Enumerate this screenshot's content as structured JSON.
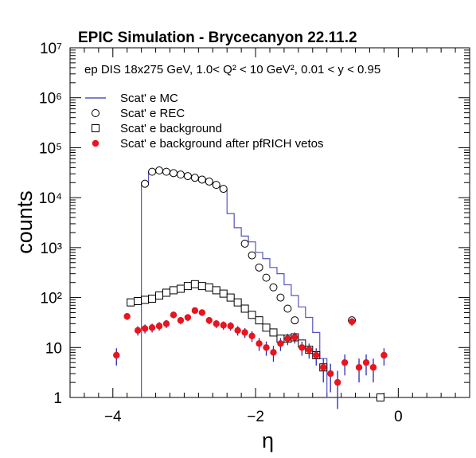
{
  "chart_data": {
    "type": "scatter",
    "title": "EPIC Simulation - Brycecanyon 22.11.2",
    "subtitle": "ep DIS 18x275 GeV, 1.0< Q² < 10 GeV², 0.01 < y < 0.95",
    "xlabel": "η",
    "ylabel": "counts",
    "xlim": [
      -4.6,
      1.0
    ],
    "ylim": [
      1,
      10000000
    ],
    "yscale": "log",
    "x_ticks": [
      "−4",
      "−2",
      "0"
    ],
    "y_ticks": [
      "1",
      "10",
      "10²",
      "10³",
      "10⁴",
      "10⁵",
      "10⁶",
      "10⁷"
    ],
    "legend_position": "top-left",
    "series": [
      {
        "name": "Scat' e MC",
        "style": "line-step",
        "color": "#5555bb",
        "x": [
          -3.6,
          -3.5,
          -3.4,
          -3.3,
          -3.2,
          -3.1,
          -3.0,
          -2.9,
          -2.8,
          -2.7,
          -2.6,
          -2.5,
          -2.4,
          -2.3,
          -2.2,
          -2.1,
          -2.0,
          -1.9,
          -1.8,
          -1.7,
          -1.6,
          -1.5,
          -1.4,
          -1.3,
          -1.2,
          -1.1,
          -1.0
        ],
        "values": [
          20000,
          33000,
          35000,
          34000,
          32000,
          30000,
          28000,
          26000,
          24000,
          21000,
          18000,
          14500,
          4800,
          2500,
          1700,
          1300,
          800,
          600,
          400,
          300,
          180,
          110,
          65,
          40,
          20,
          6,
          0
        ]
      },
      {
        "name": "Scat' e REC",
        "style": "open-circle",
        "color": "#000000",
        "x": [
          -3.55,
          -3.45,
          -3.35,
          -3.25,
          -3.15,
          -3.05,
          -2.95,
          -2.85,
          -2.75,
          -2.65,
          -2.55,
          -2.45,
          -2.15,
          -2.05,
          -1.95,
          -1.85,
          -1.75,
          -1.65,
          -1.55,
          -1.45,
          -0.65
        ],
        "values": [
          19000,
          33000,
          35000,
          33000,
          31000,
          29000,
          27000,
          25000,
          23000,
          21000,
          18000,
          15000,
          1200,
          700,
          400,
          250,
          160,
          100,
          60,
          35,
          35
        ]
      },
      {
        "name": "Scat' e background",
        "style": "open-square",
        "color": "#000000",
        "x": [
          -3.75,
          -3.65,
          -3.55,
          -3.45,
          -3.35,
          -3.25,
          -3.15,
          -3.05,
          -2.95,
          -2.85,
          -2.75,
          -2.65,
          -2.55,
          -2.45,
          -2.35,
          -2.25,
          -2.15,
          -2.05,
          -1.95,
          -1.85,
          -1.75,
          -1.65,
          -1.55,
          -1.45,
          -1.35,
          -1.25,
          -1.15,
          -1.05,
          -0.25
        ],
        "values": [
          80,
          85,
          90,
          95,
          110,
          125,
          140,
          150,
          170,
          185,
          170,
          160,
          140,
          120,
          100,
          80,
          60,
          45,
          35,
          25,
          20,
          15,
          15,
          16,
          12,
          9,
          7,
          4,
          1
        ]
      },
      {
        "name": "Scat' e background after pfRICH vetos",
        "style": "filled-circle",
        "color": "#e8141e",
        "x": [
          -3.95,
          -3.8,
          -3.65,
          -3.55,
          -3.45,
          -3.35,
          -3.25,
          -3.15,
          -3.05,
          -2.95,
          -2.85,
          -2.75,
          -2.65,
          -2.55,
          -2.45,
          -2.35,
          -2.25,
          -2.15,
          -2.05,
          -1.95,
          -1.85,
          -1.75,
          -1.65,
          -1.55,
          -1.45,
          -1.35,
          -1.25,
          -1.15,
          -1.05,
          -0.95,
          -0.85,
          -0.75,
          -0.65,
          -0.55,
          -0.45,
          -0.35,
          -0.2
        ],
        "values": [
          7,
          42,
          22,
          24,
          25,
          27,
          30,
          45,
          35,
          40,
          55,
          50,
          35,
          30,
          28,
          27,
          22,
          20,
          17,
          12,
          10,
          8,
          12,
          15,
          16,
          10,
          9,
          7,
          4,
          3,
          2,
          5,
          33,
          4,
          5,
          4,
          7
        ]
      }
    ]
  }
}
